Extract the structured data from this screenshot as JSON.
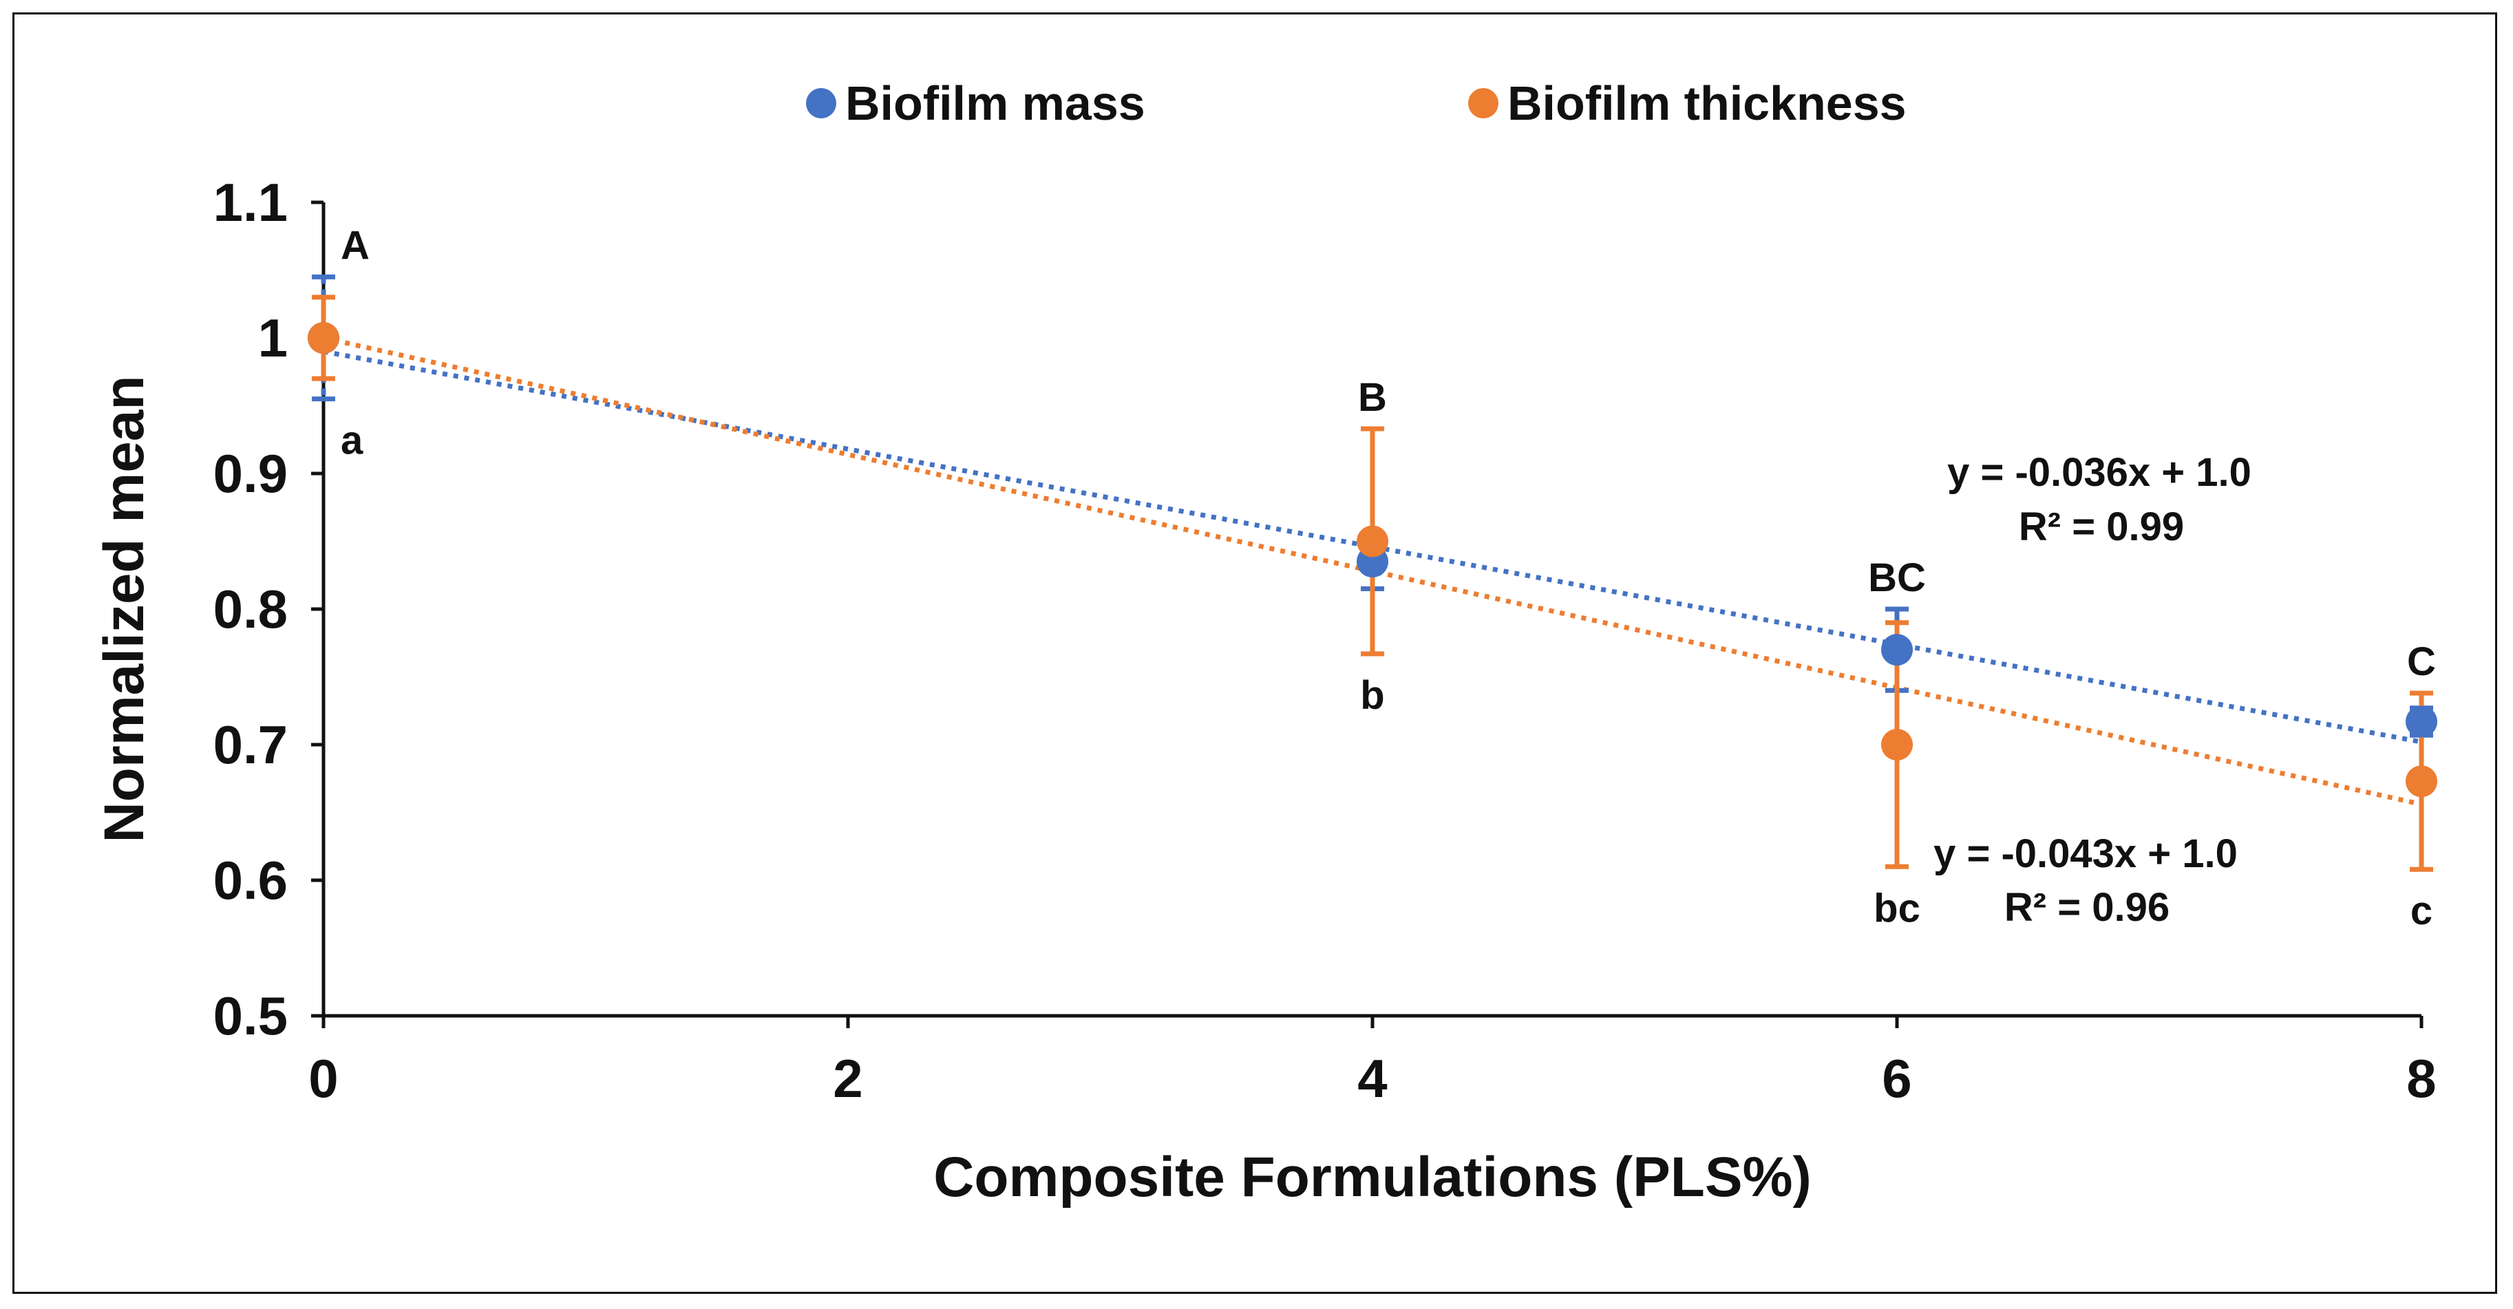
{
  "chart_data": {
    "type": "scatter",
    "title": "",
    "xlabel": "Composite Formulations (PLS%)",
    "ylabel": "Normalized mean",
    "xlim": [
      0,
      8
    ],
    "ylim": [
      0.5,
      1.1
    ],
    "x_ticks": [
      "0",
      "2",
      "4",
      "6",
      "8"
    ],
    "y_ticks": [
      "0.5",
      "0.6",
      "0.7",
      "0.8",
      "0.9",
      "1",
      "1.1"
    ],
    "legend_position": "top",
    "series": [
      {
        "name": "Biofilm mass",
        "color": "#4472C4",
        "x": [
          0,
          4,
          6,
          8
        ],
        "y": [
          1.0,
          0.835,
          0.77,
          0.717
        ],
        "err": [
          0.045,
          0.02,
          0.03,
          0.01
        ],
        "letters": [
          "A",
          "B",
          "BC",
          "C"
        ],
        "trendline": {
          "slope": -0.036,
          "intercept": 0.99,
          "equation": "y = -0.036x + 1.0",
          "r2": "R² = 0.99"
        }
      },
      {
        "name": "Biofilm thickness",
        "color": "#ED7D31",
        "x": [
          0,
          4,
          6,
          8
        ],
        "y": [
          1.0,
          0.85,
          0.7,
          0.673
        ],
        "err": [
          0.03,
          0.083,
          0.09,
          0.065
        ],
        "letters": [
          "a",
          "b",
          "bc",
          "c"
        ],
        "trendline": {
          "slope": -0.043,
          "intercept": 1.0,
          "equation": "y = -0.043x + 1.0",
          "r2": "R² = 0.96"
        }
      }
    ]
  }
}
